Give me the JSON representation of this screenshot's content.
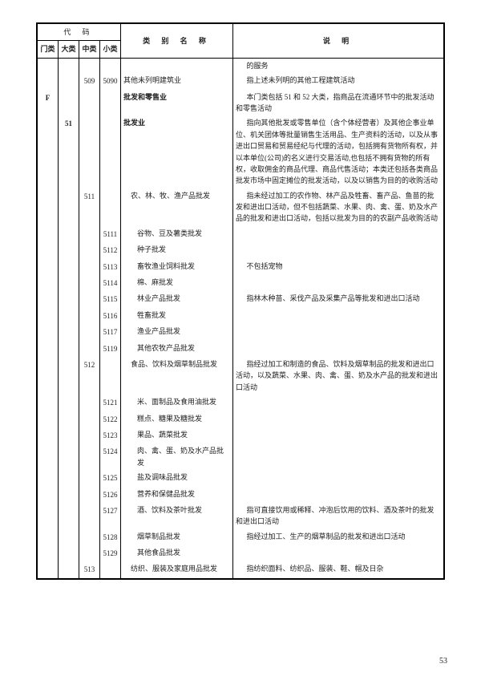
{
  "pageNumber": "53",
  "header": {
    "codeGroup": "代  码",
    "men": "门类",
    "da": "大类",
    "zhong": "中类",
    "xiao": "小类",
    "name": "类 别 名 称",
    "desc": "说    明"
  },
  "rows": [
    {
      "men": "",
      "da": "",
      "zhong": "",
      "xiao": "",
      "name": "",
      "desc": "的服务"
    },
    {
      "men": "",
      "da": "",
      "zhong": "509",
      "xiao": "5090",
      "name": "其他未列明建筑业",
      "desc": "指上述未列明的其他工程建筑活动"
    },
    {
      "men": "F",
      "da": "",
      "zhong": "",
      "xiao": "",
      "name": "批发和零售业",
      "bold": true,
      "desc": "本门类包括 51 和 52 大类，指商品在流通环节中的批发活动和零售活动"
    },
    {
      "men": "",
      "da": "51",
      "zhong": "",
      "xiao": "",
      "name": "批发业",
      "bold": true,
      "desc": "指向其他批发或零售单位（含个体经营者）及其他企事业单位、机关团体等批量销售生活用品、生产资料的活动，以及从事进出口贸易和贸易经纪与代理的活动，包括拥有货物所有权，并以本单位(公司)的名义进行交易活动,也包括不拥有货物的所有权，收取佣金的商品代理、商品代售活动；本类还包括各类商品批发市场中固定摊位的批发活动，以及以销售为目的的收购活动"
    },
    {
      "men": "",
      "da": "",
      "zhong": "511",
      "xiao": "",
      "name": "农、林、牧、渔产品批发",
      "nameIndent": 1,
      "desc": "指未经过加工的农作物、林产品及牲畜、畜产品、鱼苗的批发和进出口活动，但不包括蔬菜、水果、肉、禽、蛋、奶及水产品的批发和进出口活动，包括以批发为目的的农副产品收购活动"
    },
    {
      "men": "",
      "da": "",
      "zhong": "",
      "xiao": "5111",
      "name": "谷物、豆及薯类批发",
      "nameIndent": 2,
      "desc": ""
    },
    {
      "men": "",
      "da": "",
      "zhong": "",
      "xiao": "5112",
      "name": "种子批发",
      "nameIndent": 2,
      "desc": ""
    },
    {
      "men": "",
      "da": "",
      "zhong": "",
      "xiao": "5113",
      "name": "畜牧渔业饲料批发",
      "nameIndent": 2,
      "desc": "不包括宠物"
    },
    {
      "men": "",
      "da": "",
      "zhong": "",
      "xiao": "5114",
      "name": "棉、麻批发",
      "nameIndent": 2,
      "desc": ""
    },
    {
      "men": "",
      "da": "",
      "zhong": "",
      "xiao": "5115",
      "name": "林业产品批发",
      "nameIndent": 2,
      "desc": "指林木种苗、采伐产品及采集产品等批发和进出口活动"
    },
    {
      "men": "",
      "da": "",
      "zhong": "",
      "xiao": "5116",
      "name": "牲畜批发",
      "nameIndent": 2,
      "desc": ""
    },
    {
      "men": "",
      "da": "",
      "zhong": "",
      "xiao": "5117",
      "name": "渔业产品批发",
      "nameIndent": 2,
      "desc": ""
    },
    {
      "men": "",
      "da": "",
      "zhong": "",
      "xiao": "5119",
      "name": "其他农牧产品批发",
      "nameIndent": 2,
      "desc": ""
    },
    {
      "men": "",
      "da": "",
      "zhong": "512",
      "xiao": "",
      "name": "食品、饮料及烟草制品批发",
      "nameIndent": 1,
      "desc": "指经过加工和制造的食品、饮料及烟草制品的批发和进出口活动，以及蔬菜、水果、肉、禽、蛋、奶及水产品的批发和进出口活动"
    },
    {
      "men": "",
      "da": "",
      "zhong": "",
      "xiao": "5121",
      "name": "米、面制品及食用油批发",
      "nameIndent": 2,
      "desc": ""
    },
    {
      "men": "",
      "da": "",
      "zhong": "",
      "xiao": "5122",
      "name": "糕点、糖果及糖批发",
      "nameIndent": 2,
      "desc": ""
    },
    {
      "men": "",
      "da": "",
      "zhong": "",
      "xiao": "5123",
      "name": "果品、蔬菜批发",
      "nameIndent": 2,
      "desc": ""
    },
    {
      "men": "",
      "da": "",
      "zhong": "",
      "xiao": "5124",
      "name": "肉、禽、蛋、奶及水产品批发",
      "nameIndent": 2,
      "desc": ""
    },
    {
      "men": "",
      "da": "",
      "zhong": "",
      "xiao": "5125",
      "name": "盐及调味品批发",
      "nameIndent": 2,
      "desc": ""
    },
    {
      "men": "",
      "da": "",
      "zhong": "",
      "xiao": "5126",
      "name": "营养和保健品批发",
      "nameIndent": 2,
      "desc": ""
    },
    {
      "men": "",
      "da": "",
      "zhong": "",
      "xiao": "5127",
      "name": "酒、饮料及茶叶批发",
      "nameIndent": 2,
      "desc": "指可直接饮用或稀释、冲泡后饮用的饮料、酒及茶叶的批发和进出口活动"
    },
    {
      "men": "",
      "da": "",
      "zhong": "",
      "xiao": "5128",
      "name": "烟草制品批发",
      "nameIndent": 2,
      "desc": "指经过加工、生产的烟草制品的批发和进出口活动"
    },
    {
      "men": "",
      "da": "",
      "zhong": "",
      "xiao": "5129",
      "name": "其他食品批发",
      "nameIndent": 2,
      "desc": ""
    },
    {
      "men": "",
      "da": "",
      "zhong": "513",
      "xiao": "",
      "name": "纺织、服装及家庭用品批发",
      "nameIndent": 1,
      "desc": "指纺织面料、纺织品、服装、鞋、帽及日杂"
    }
  ]
}
